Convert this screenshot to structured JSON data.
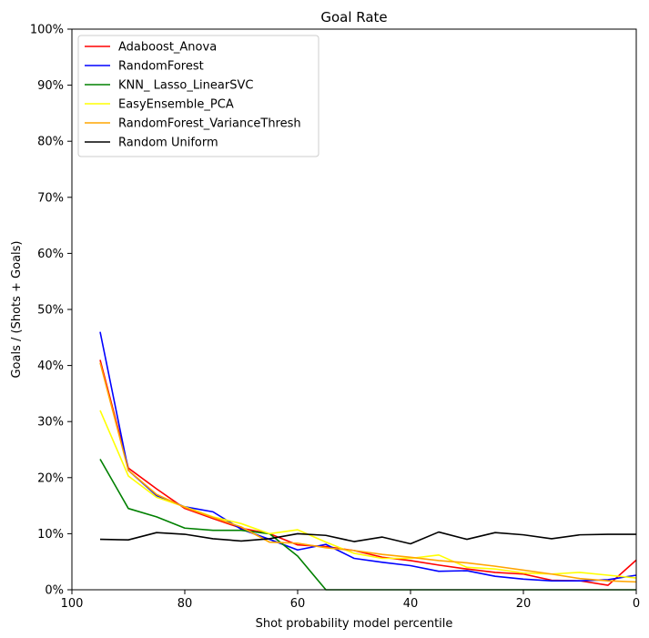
{
  "chart_data": {
    "type": "line",
    "title": "Goal Rate",
    "xlabel": "Shot probability model percentile",
    "ylabel": "Goals / (Shots + Goals)",
    "xlim": [
      100,
      0
    ],
    "ylim": [
      0,
      1
    ],
    "x_ticks": [
      {
        "value": 100,
        "label": "100"
      },
      {
        "value": 80,
        "label": "80"
      },
      {
        "value": 60,
        "label": "60"
      },
      {
        "value": 40,
        "label": "40"
      },
      {
        "value": 20,
        "label": "20"
      },
      {
        "value": 0,
        "label": "0"
      }
    ],
    "y_ticks": [
      {
        "value": 0,
        "label": "0%"
      },
      {
        "value": 0.1,
        "label": "10%"
      },
      {
        "value": 0.2,
        "label": "20%"
      },
      {
        "value": 0.3,
        "label": "30%"
      },
      {
        "value": 0.4,
        "label": "40%"
      },
      {
        "value": 0.5,
        "label": "50%"
      },
      {
        "value": 0.6,
        "label": "60%"
      },
      {
        "value": 0.7,
        "label": "70%"
      },
      {
        "value": 0.8,
        "label": "80%"
      },
      {
        "value": 0.9,
        "label": "90%"
      },
      {
        "value": 1.0,
        "label": "100%"
      }
    ],
    "grid": false,
    "legend_position": "top-left",
    "x": [
      95,
      90,
      85,
      80,
      75,
      70,
      65,
      60,
      55,
      50,
      45,
      40,
      35,
      30,
      25,
      20,
      15,
      10,
      5,
      0
    ],
    "series": [
      {
        "name": "Adaboost_Anova",
        "color": "#ff0000",
        "values": [
          0.41,
          0.217,
          0.18,
          0.145,
          0.127,
          0.11,
          0.1,
          0.08,
          0.077,
          0.07,
          0.058,
          0.052,
          0.044,
          0.037,
          0.031,
          0.028,
          0.017,
          0.016,
          0.008,
          0.053
        ]
      },
      {
        "name": "RandomForest",
        "color": "#0000ff",
        "values": [
          0.46,
          0.213,
          0.168,
          0.148,
          0.139,
          0.108,
          0.09,
          0.071,
          0.081,
          0.056,
          0.049,
          0.043,
          0.033,
          0.034,
          0.024,
          0.019,
          0.016,
          0.016,
          0.018,
          0.026
        ]
      },
      {
        "name": "KNN_ Lasso_LinearSVC",
        "color": "#008000",
        "values": [
          0.233,
          0.145,
          0.13,
          0.11,
          0.106,
          0.106,
          0.1,
          0.06,
          0.0,
          0.0,
          0.0,
          0.0,
          0.0,
          0.0,
          0.0,
          0.0,
          0.0,
          0.0,
          0.0,
          0.0
        ]
      },
      {
        "name": "EasyEnsemble_PCA",
        "color": "#ffff00",
        "values": [
          0.32,
          0.203,
          0.165,
          0.148,
          0.13,
          0.118,
          0.1,
          0.107,
          0.085,
          0.065,
          0.056,
          0.056,
          0.062,
          0.04,
          0.037,
          0.03,
          0.028,
          0.031,
          0.026,
          0.021
        ]
      },
      {
        "name": "RandomForest_VarianceThresh",
        "color": "#ffa500",
        "values": [
          0.405,
          0.213,
          0.17,
          0.147,
          0.129,
          0.112,
          0.085,
          0.083,
          0.075,
          0.07,
          0.063,
          0.058,
          0.052,
          0.048,
          0.042,
          0.035,
          0.028,
          0.02,
          0.016,
          0.014
        ]
      },
      {
        "name": "Random Uniform",
        "color": "#000000",
        "values": [
          0.09,
          0.089,
          0.102,
          0.099,
          0.091,
          0.087,
          0.091,
          0.1,
          0.097,
          0.086,
          0.094,
          0.082,
          0.103,
          0.09,
          0.102,
          0.098,
          0.091,
          0.098,
          0.099,
          0.099
        ]
      }
    ]
  }
}
